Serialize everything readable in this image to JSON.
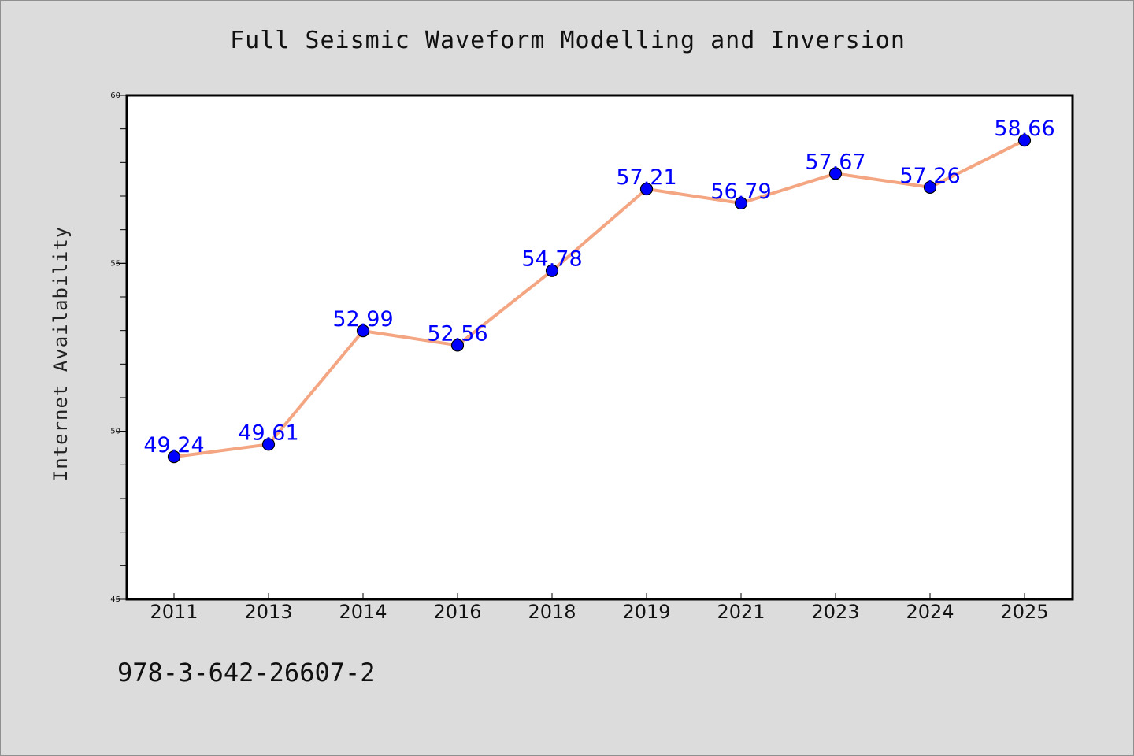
{
  "chart_data": {
    "type": "line",
    "title": "Full Seismic Waveform Modelling and Inversion",
    "xlabel": "",
    "ylabel": "Internet Availability",
    "categories": [
      "2011",
      "2013",
      "2014",
      "2016",
      "2018",
      "2019",
      "2021",
      "2023",
      "2024",
      "2025"
    ],
    "series": [
      {
        "values": [
          49.24,
          49.61,
          52.99,
          52.56,
          54.78,
          57.21,
          56.79,
          57.67,
          57.26,
          58.66
        ],
        "data_labels": [
          "49.24",
          "49.61",
          "52.99",
          "52.56",
          "54.78",
          "57.21",
          "56.79",
          "57.67",
          "57.26",
          "58.66"
        ],
        "line_color": "#f4a582",
        "marker_color": "#0000ff"
      }
    ],
    "ylim": [
      45,
      60
    ],
    "yticks": [
      45,
      50,
      55,
      60
    ],
    "y_minor_step": 1,
    "grid": false,
    "legend": "none",
    "plot_background": "#ffffff",
    "label_color": "#0000ff"
  },
  "footer": {
    "id_text": "978-3-642-26607-2"
  }
}
